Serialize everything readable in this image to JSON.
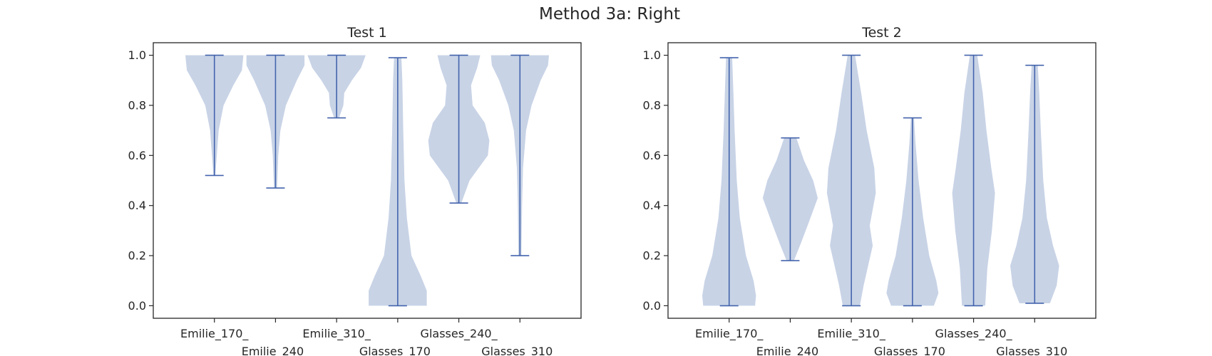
{
  "figure": {
    "title": "Method 3a: Right",
    "colors": {
      "violin_fill": "#c8d3e6",
      "violin_line": "#4464ad",
      "axis": "#262626"
    }
  },
  "chart_data": [
    {
      "type": "violin",
      "title": "Test 1",
      "xlabel": "",
      "ylabel": "",
      "ylim": [
        -0.05,
        1.05
      ],
      "yticks": [
        0.0,
        0.2,
        0.4,
        0.6,
        0.8,
        1.0
      ],
      "ytick_labels": [
        "0.0",
        "0.2",
        "0.4",
        "0.6",
        "0.8",
        "1.0"
      ],
      "categories": [
        "Emilie_170_",
        "Emilie_240_",
        "Emilie_310_",
        "Glasses_170_",
        "Glasses_240_",
        "Glasses_310_"
      ],
      "violins": [
        {
          "min": 0.52,
          "max": 1.0,
          "profile": [
            [
              0.52,
              0.03
            ],
            [
              0.6,
              0.08
            ],
            [
              0.7,
              0.14
            ],
            [
              0.8,
              0.3
            ],
            [
              0.88,
              0.62
            ],
            [
              0.94,
              0.9
            ],
            [
              1.0,
              0.95
            ]
          ]
        },
        {
          "min": 0.47,
          "max": 1.0,
          "profile": [
            [
              0.47,
              0.05
            ],
            [
              0.6,
              0.09
            ],
            [
              0.7,
              0.16
            ],
            [
              0.8,
              0.34
            ],
            [
              0.9,
              0.7
            ],
            [
              0.96,
              0.95
            ],
            [
              1.0,
              0.95
            ]
          ]
        },
        {
          "min": 0.75,
          "max": 1.0,
          "profile": [
            [
              0.75,
              0.08
            ],
            [
              0.8,
              0.22
            ],
            [
              0.85,
              0.25
            ],
            [
              0.9,
              0.5
            ],
            [
              0.95,
              0.8
            ],
            [
              1.0,
              0.95
            ]
          ]
        },
        {
          "min": 0.0,
          "max": 0.99,
          "profile": [
            [
              0.0,
              0.95
            ],
            [
              0.06,
              0.95
            ],
            [
              0.12,
              0.75
            ],
            [
              0.2,
              0.45
            ],
            [
              0.35,
              0.3
            ],
            [
              0.5,
              0.22
            ],
            [
              0.7,
              0.18
            ],
            [
              0.9,
              0.15
            ],
            [
              0.99,
              0.12
            ]
          ]
        },
        {
          "min": 0.41,
          "max": 1.0,
          "profile": [
            [
              0.41,
              0.08
            ],
            [
              0.5,
              0.35
            ],
            [
              0.6,
              0.95
            ],
            [
              0.66,
              1.0
            ],
            [
              0.73,
              0.85
            ],
            [
              0.8,
              0.45
            ],
            [
              0.88,
              0.4
            ],
            [
              0.95,
              0.6
            ],
            [
              1.0,
              0.7
            ]
          ]
        },
        {
          "min": 0.2,
          "max": 1.0,
          "profile": [
            [
              0.2,
              0.05
            ],
            [
              0.4,
              0.07
            ],
            [
              0.55,
              0.1
            ],
            [
              0.7,
              0.2
            ],
            [
              0.8,
              0.38
            ],
            [
              0.9,
              0.68
            ],
            [
              0.96,
              0.92
            ],
            [
              1.0,
              0.95
            ]
          ]
        }
      ]
    },
    {
      "type": "violin",
      "title": "Test 2",
      "xlabel": "",
      "ylabel": "",
      "ylim": [
        -0.05,
        1.05
      ],
      "yticks": [
        0.0,
        0.2,
        0.4,
        0.6,
        0.8,
        1.0
      ],
      "ytick_labels": [
        "0.0",
        "0.2",
        "0.4",
        "0.6",
        "0.8",
        "1.0"
      ],
      "categories": [
        "Emilie_170_",
        "Emilie_240_",
        "Emilie_310_",
        "Glasses_170_",
        "Glasses_240_",
        "Glasses_310_"
      ],
      "violins": [
        {
          "min": 0.0,
          "max": 0.99,
          "profile": [
            [
              0.0,
              0.85
            ],
            [
              0.04,
              0.88
            ],
            [
              0.1,
              0.8
            ],
            [
              0.2,
              0.55
            ],
            [
              0.35,
              0.35
            ],
            [
              0.5,
              0.25
            ],
            [
              0.7,
              0.18
            ],
            [
              0.85,
              0.14
            ],
            [
              0.99,
              0.1
            ]
          ]
        },
        {
          "min": 0.18,
          "max": 0.67,
          "profile": [
            [
              0.18,
              0.12
            ],
            [
              0.25,
              0.35
            ],
            [
              0.33,
              0.6
            ],
            [
              0.43,
              0.9
            ],
            [
              0.5,
              0.75
            ],
            [
              0.58,
              0.45
            ],
            [
              0.67,
              0.2
            ]
          ]
        },
        {
          "min": 0.0,
          "max": 1.0,
          "profile": [
            [
              0.0,
              0.28
            ],
            [
              0.08,
              0.4
            ],
            [
              0.16,
              0.55
            ],
            [
              0.24,
              0.7
            ],
            [
              0.32,
              0.6
            ],
            [
              0.45,
              0.8
            ],
            [
              0.55,
              0.75
            ],
            [
              0.7,
              0.5
            ],
            [
              0.85,
              0.32
            ],
            [
              1.0,
              0.12
            ]
          ]
        },
        {
          "min": 0.0,
          "max": 0.75,
          "profile": [
            [
              0.0,
              0.7
            ],
            [
              0.05,
              0.85
            ],
            [
              0.1,
              0.78
            ],
            [
              0.2,
              0.55
            ],
            [
              0.35,
              0.35
            ],
            [
              0.5,
              0.2
            ],
            [
              0.65,
              0.1
            ],
            [
              0.75,
              0.05
            ]
          ]
        },
        {
          "min": 0.0,
          "max": 1.0,
          "profile": [
            [
              0.0,
              0.38
            ],
            [
              0.15,
              0.45
            ],
            [
              0.3,
              0.6
            ],
            [
              0.45,
              0.7
            ],
            [
              0.55,
              0.58
            ],
            [
              0.7,
              0.42
            ],
            [
              0.85,
              0.3
            ],
            [
              1.0,
              0.12
            ]
          ]
        },
        {
          "min": 0.01,
          "max": 0.96,
          "profile": [
            [
              0.01,
              0.5
            ],
            [
              0.08,
              0.72
            ],
            [
              0.16,
              0.8
            ],
            [
              0.24,
              0.6
            ],
            [
              0.35,
              0.4
            ],
            [
              0.5,
              0.28
            ],
            [
              0.7,
              0.2
            ],
            [
              0.85,
              0.15
            ],
            [
              0.96,
              0.1
            ]
          ]
        }
      ]
    }
  ]
}
